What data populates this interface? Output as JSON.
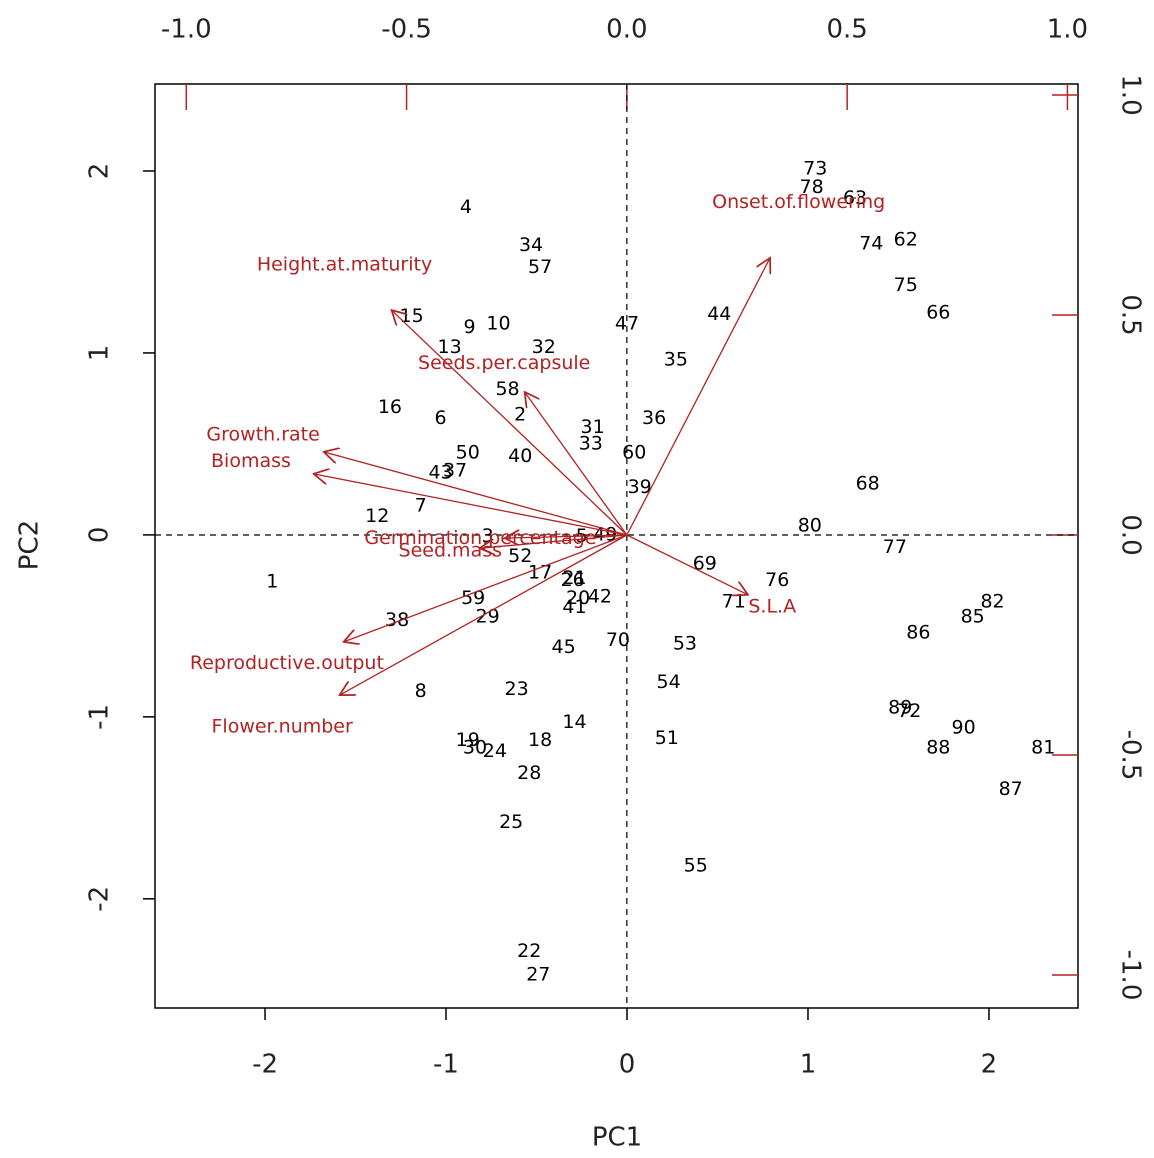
{
  "chart_data": {
    "type": "biplot",
    "x_label": "PC1",
    "y_label": "PC2",
    "xlim": [
      -2.608,
      2.492
    ],
    "ylim": [
      -2.6,
      2.478
    ],
    "xticks": [
      -2,
      -1,
      0,
      1,
      2
    ],
    "yticks": [
      -2,
      -1,
      0,
      1,
      2
    ],
    "x2lim": [
      -1.071,
      1.024
    ],
    "y2lim": [
      -1.075,
      1.025
    ],
    "x2ticks": [
      {
        "value": -1,
        "label": "-1.0"
      },
      -0.5,
      {
        "value": 0,
        "label": "0.0"
      },
      0.5,
      {
        "value": 1,
        "label": "1.0"
      }
    ],
    "y2ticks": [
      {
        "value": -1,
        "label": "-1.0"
      },
      -0.5,
      {
        "value": 0,
        "label": "0.0"
      },
      0.5,
      {
        "value": 1,
        "label": "1.0"
      }
    ],
    "observations": {
      "color": "#000000",
      "labels": [
        "73",
        "78",
        "63",
        "4",
        "34",
        "57",
        "74",
        "62",
        "75",
        "66",
        "15",
        "9",
        "10",
        "13",
        "32",
        "47",
        "44",
        "35",
        "58",
        "16",
        "6",
        "2",
        "36",
        "31",
        "33",
        "50",
        "40",
        "60",
        "43",
        "37",
        "39",
        "68",
        "7",
        "12",
        "80",
        "77",
        "3",
        "5",
        "49",
        "52",
        "1",
        "17",
        "21",
        "26",
        "69",
        "76",
        "20",
        "42",
        "41",
        "59",
        "29",
        "38",
        "71",
        "82",
        "85",
        "86",
        "45",
        "70",
        "53",
        "54",
        "8",
        "23",
        "89",
        "72",
        "14",
        "90",
        "88",
        "81",
        "19",
        "30",
        "24",
        "18",
        "51",
        "28",
        "87",
        "25",
        "55",
        "22",
        "27"
      ],
      "x": [
        1.04,
        1.02,
        1.26,
        -0.89,
        -0.53,
        -0.48,
        1.35,
        1.54,
        1.54,
        1.72,
        -1.19,
        -0.87,
        -0.71,
        -0.98,
        -0.46,
        0.0,
        0.51,
        0.27,
        -0.66,
        -1.31,
        -1.03,
        -0.59,
        0.15,
        -0.19,
        -0.2,
        -0.88,
        -0.59,
        0.04,
        -1.03,
        -0.95,
        0.07,
        1.33,
        -1.14,
        -1.38,
        1.01,
        1.48,
        -0.77,
        -0.25,
        -0.12,
        -0.59,
        -1.96,
        -0.48,
        -0.29,
        -0.3,
        0.43,
        0.83,
        -0.27,
        -0.15,
        -0.29,
        -0.85,
        -0.77,
        -1.27,
        0.59,
        2.02,
        1.91,
        1.61,
        -0.35,
        -0.05,
        0.32,
        0.23,
        -1.14,
        -0.61,
        1.51,
        1.56,
        -0.29,
        1.86,
        1.72,
        2.3,
        -0.88,
        -0.84,
        -0.73,
        -0.48,
        0.22,
        -0.54,
        2.12,
        -0.64,
        0.38,
        -0.54,
        -0.49
      ],
      "y": [
        2.01,
        1.91,
        1.85,
        1.8,
        1.59,
        1.47,
        1.6,
        1.62,
        1.37,
        1.22,
        1.2,
        1.14,
        1.16,
        1.03,
        1.03,
        1.16,
        1.21,
        0.96,
        0.8,
        0.7,
        0.64,
        0.66,
        0.64,
        0.59,
        0.5,
        0.45,
        0.43,
        0.45,
        0.34,
        0.35,
        0.26,
        0.28,
        0.16,
        0.1,
        0.05,
        -0.07,
        -0.01,
        -0.01,
        0.0,
        -0.12,
        -0.26,
        -0.21,
        -0.24,
        -0.25,
        -0.16,
        -0.25,
        -0.35,
        -0.34,
        -0.4,
        -0.35,
        -0.45,
        -0.47,
        -0.37,
        -0.37,
        -0.45,
        -0.54,
        -0.62,
        -0.58,
        -0.6,
        -0.81,
        -0.86,
        -0.85,
        -0.95,
        -0.97,
        -1.03,
        -1.06,
        -1.17,
        -1.17,
        -1.13,
        -1.17,
        -1.19,
        -1.13,
        -1.12,
        -1.31,
        -1.4,
        -1.58,
        -1.82,
        -2.29,
        -2.42
      ]
    },
    "loadings": {
      "color": "#b22222",
      "names": [
        "Onset.of.flowering",
        "Height.at.maturity",
        "Seeds.per.capsule",
        "Growth.rate",
        "Biomass",
        "Germination.percentage",
        "Seed.mass",
        "S.L.A",
        "Reproductive.output",
        "Flower.number"
      ],
      "x": [
        0.325,
        -0.534,
        -0.232,
        -0.688,
        -0.711,
        -0.277,
        -0.334,
        0.275,
        -0.643,
        -0.652
      ],
      "y": [
        0.63,
        0.511,
        0.325,
        0.189,
        0.139,
        -0.007,
        -0.03,
        -0.136,
        -0.243,
        -0.364
      ]
    }
  }
}
